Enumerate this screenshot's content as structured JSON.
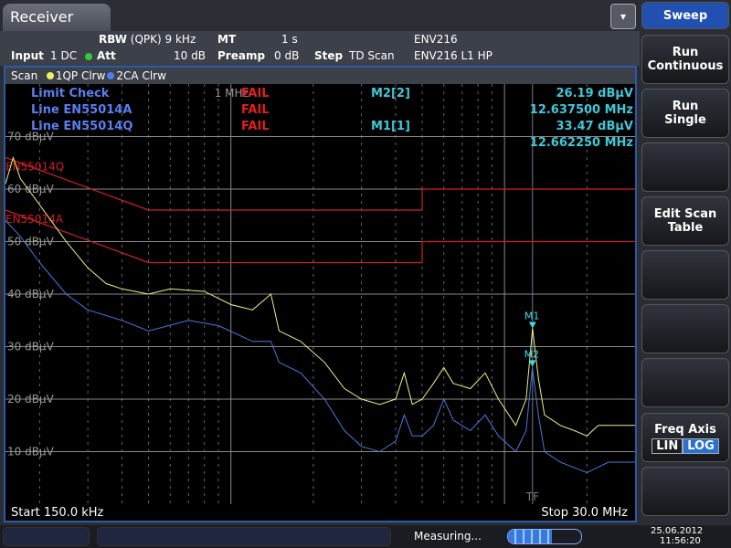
{
  "window": {
    "tab": "Receiver",
    "menu_icon": "overflow-menu-icon"
  },
  "settings": {
    "rbw_label": "RBW",
    "rbw_value": "(QPK) 9 kHz",
    "mt_label": "MT",
    "mt_value": "1 s",
    "transducer1": "ENV216",
    "input_label": "Input",
    "input_value": "1 DC",
    "att_label": "Att",
    "att_value": "10 dB",
    "preamp_label": "Preamp",
    "preamp_value": "0 dB",
    "step_label": "Step",
    "step_value": "TD Scan",
    "transducer2": "ENV216 L1 HP"
  },
  "tracebar": {
    "mode": "Scan",
    "trace1": "1QP Clrw",
    "trace2": "2CA Clrw"
  },
  "limit": {
    "title": "Limit Check",
    "title_result": "FAIL",
    "lines": [
      {
        "name": "Line EN55014A",
        "result": "FAIL"
      },
      {
        "name": "Line EN55014Q",
        "result": "FAIL"
      }
    ]
  },
  "markers": [
    {
      "label": "M2[2]",
      "level": "26.19 dBµV",
      "freq": "12.637500 MHz"
    },
    {
      "label": "M1[1]",
      "level": "33.47 dBµV",
      "freq": "12.662250 MHz"
    }
  ],
  "footer": {
    "start": "Start 150.0 kHz",
    "stop": "Stop 30.0 MHz"
  },
  "chart_data": {
    "type": "line",
    "x_scale": "log",
    "xlim_mhz": [
      0.15,
      30
    ],
    "ylim": [
      0,
      80
    ],
    "y_unit": "dBµV",
    "yticks": [
      "70 dBµV",
      "60 dBµV",
      "50 dBµV",
      "40 dBµV",
      "30 dBµV",
      "20 dBµV",
      "10 dBµV"
    ],
    "ytick_values": [
      70,
      60,
      50,
      40,
      30,
      20,
      10
    ],
    "freq_label": "1 MHz",
    "tf_label": "TF",
    "tf_freq": 12.66,
    "limit_lines": [
      {
        "name": "EN55014Q",
        "color": "#d02020",
        "points": [
          [
            0.15,
            66
          ],
          [
            0.5,
            56
          ],
          [
            5,
            56
          ],
          [
            5,
            60
          ],
          [
            30,
            60
          ]
        ]
      },
      {
        "name": "EN55014A",
        "color": "#d02020",
        "points": [
          [
            0.15,
            56
          ],
          [
            0.5,
            46
          ],
          [
            5,
            46
          ],
          [
            5,
            50
          ],
          [
            30,
            50
          ]
        ]
      }
    ],
    "series": [
      {
        "name": "1QP",
        "color": "#f0f080",
        "points": [
          [
            0.15,
            61
          ],
          [
            0.16,
            66
          ],
          [
            0.17,
            62
          ],
          [
            0.2,
            57
          ],
          [
            0.25,
            50
          ],
          [
            0.3,
            45
          ],
          [
            0.35,
            42
          ],
          [
            0.4,
            41
          ],
          [
            0.5,
            40
          ],
          [
            0.6,
            41
          ],
          [
            0.8,
            40.5
          ],
          [
            1.0,
            38
          ],
          [
            1.2,
            37
          ],
          [
            1.4,
            40
          ],
          [
            1.5,
            33
          ],
          [
            1.8,
            31
          ],
          [
            2.2,
            27
          ],
          [
            2.6,
            22
          ],
          [
            3.0,
            20
          ],
          [
            3.5,
            19
          ],
          [
            4.0,
            20
          ],
          [
            4.3,
            25
          ],
          [
            4.6,
            19
          ],
          [
            5.0,
            20
          ],
          [
            5.5,
            23
          ],
          [
            6.0,
            26
          ],
          [
            6.5,
            23
          ],
          [
            7.5,
            22
          ],
          [
            8.5,
            25
          ],
          [
            9.5,
            20
          ],
          [
            11,
            15
          ],
          [
            12,
            20
          ],
          [
            12.66,
            33.5
          ],
          [
            13.3,
            24
          ],
          [
            14,
            17
          ],
          [
            16,
            15
          ],
          [
            18,
            14
          ],
          [
            20,
            13
          ],
          [
            22,
            15
          ],
          [
            26,
            15
          ],
          [
            30,
            15
          ]
        ]
      },
      {
        "name": "2CA",
        "color": "#4a78e0",
        "points": [
          [
            0.15,
            54
          ],
          [
            0.17,
            51
          ],
          [
            0.2,
            46
          ],
          [
            0.25,
            40
          ],
          [
            0.3,
            37
          ],
          [
            0.4,
            35
          ],
          [
            0.5,
            33
          ],
          [
            0.7,
            35
          ],
          [
            0.9,
            34
          ],
          [
            1.2,
            31
          ],
          [
            1.4,
            31
          ],
          [
            1.5,
            27
          ],
          [
            1.8,
            25
          ],
          [
            2.2,
            20
          ],
          [
            2.6,
            14
          ],
          [
            3.0,
            11
          ],
          [
            3.5,
            10
          ],
          [
            4.0,
            12
          ],
          [
            4.3,
            17
          ],
          [
            4.6,
            13
          ],
          [
            5.0,
            13
          ],
          [
            5.5,
            15
          ],
          [
            6.0,
            20
          ],
          [
            6.5,
            16
          ],
          [
            7.5,
            14
          ],
          [
            8.5,
            17
          ],
          [
            9.5,
            13
          ],
          [
            11,
            10
          ],
          [
            12,
            14
          ],
          [
            12.64,
            26
          ],
          [
            13.3,
            17
          ],
          [
            14,
            10
          ],
          [
            16,
            8
          ],
          [
            20,
            6
          ],
          [
            24,
            8
          ],
          [
            30,
            8
          ]
        ]
      }
    ],
    "marker_points": [
      {
        "label": "M1",
        "freq": 12.66225,
        "level": 33.47
      },
      {
        "label": "M2",
        "freq": 12.6375,
        "level": 26.19
      }
    ]
  },
  "softkeys": {
    "header": "Sweep",
    "keys": [
      [
        "Run",
        "Continuous"
      ],
      [
        "Run",
        "Single"
      ],
      [
        "",
        ""
      ],
      [
        "Edit Scan",
        "Table"
      ],
      [
        "",
        ""
      ],
      [
        "",
        ""
      ],
      [
        "",
        ""
      ]
    ],
    "freq_axis": "Freq Axis",
    "lin": "LIN",
    "log": "LOG"
  },
  "status": {
    "text": "Measuring...",
    "date": "25.06.2012",
    "time": "11:56:20",
    "progress": 0.6
  }
}
